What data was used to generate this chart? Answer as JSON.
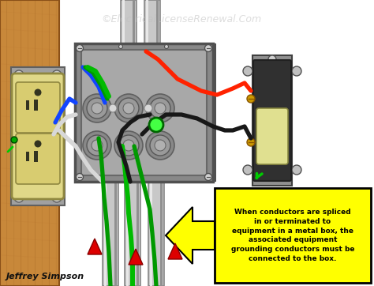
{
  "figsize": [
    4.74,
    3.62
  ],
  "dpi": 100,
  "bg_color": "#ffffff",
  "watermark": "©ElectricalLicenseRenewal.Com",
  "watermark_color": "#c0c0c0",
  "watermark_alpha": 0.55,
  "author": "Jeffrey Simpson",
  "author_color": "#111111",
  "callout_text": "When conductors are spliced\nin or terminated to\nequipment in a metal box, the\nassociated equipment\ngrounding conductors must be\nconnected to the box.",
  "callout_bg": "#ffff00",
  "callout_border": "#000000",
  "arrow_color": "#ffff00",
  "box_color": "#888888",
  "box_face": "#7a7a7a",
  "box_inner": "#a8a8a8",
  "box_border": "#505050",
  "wood_light": "#c8883a",
  "wood_mid": "#b87030",
  "wood_dark": "#8a5018",
  "conduit_light": "#c8c8c8",
  "conduit_mid": "#b0b0b0",
  "conduit_dark": "#888888",
  "outlet_body": "#e0d888",
  "outlet_face": "#d8cc70",
  "outlet_border": "#908840",
  "switch_body": "#303030",
  "switch_frame": "#909090",
  "switch_lever": "#e0e090",
  "wire_red": "#ff2200",
  "wire_black": "#181818",
  "wire_white": "#d8d8d8",
  "wire_green": "#009900",
  "wire_green2": "#00bb00",
  "wire_blue": "#1144ff",
  "arrow_red": "#dd0000",
  "green_dot": "#44ff44",
  "green_dot_border": "#006600"
}
